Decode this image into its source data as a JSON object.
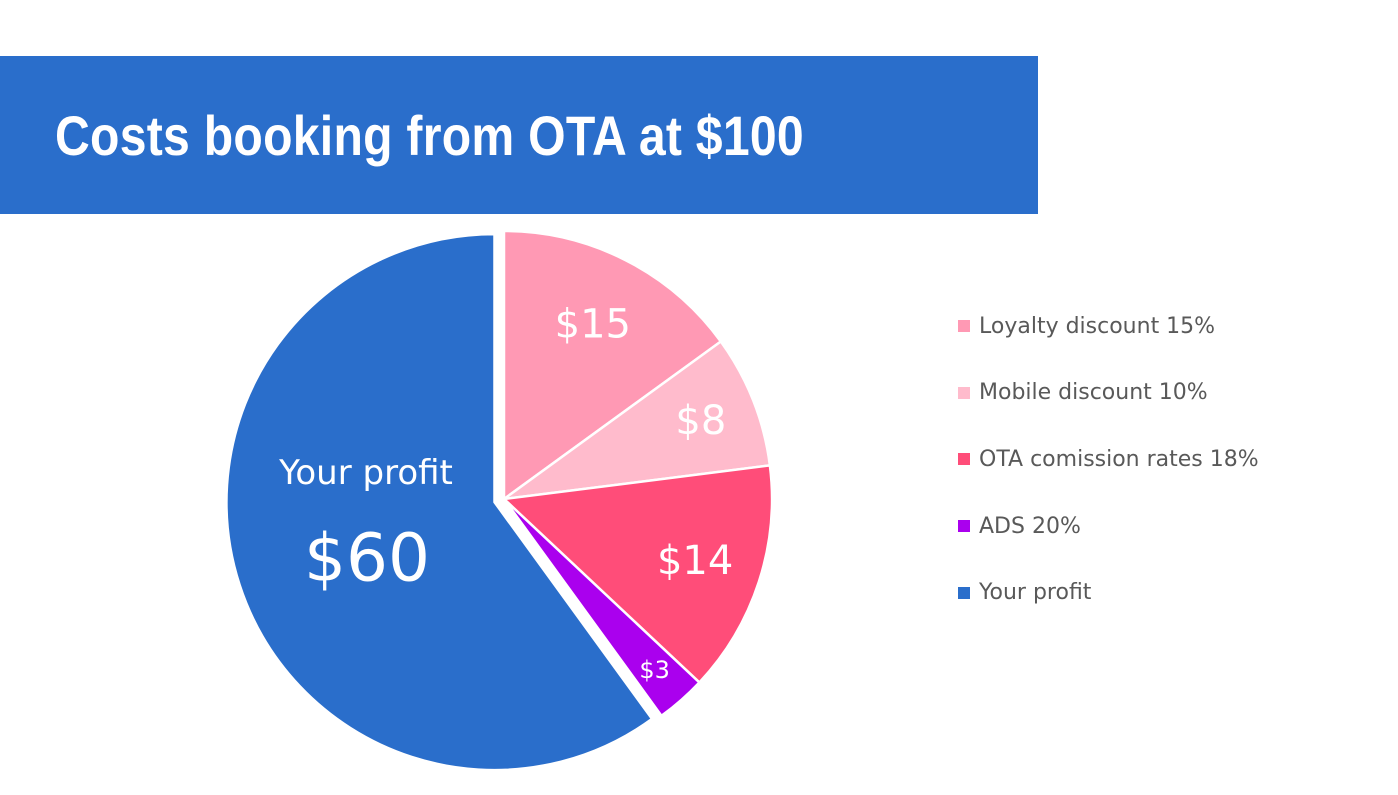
{
  "chart_data": {
    "type": "pie",
    "title": "Costs booking from OTA at $100",
    "slices": [
      {
        "label": "Loyalty discount 15%",
        "value": 15,
        "value_label": "$15",
        "color": "#FF99B4"
      },
      {
        "label": "Mobile discount 10%",
        "value": 8,
        "value_label": "$8",
        "color": "#FFBBCC"
      },
      {
        "label": "OTA comission rates 18%",
        "value": 14,
        "value_label": "$14",
        "color": "#FF4D79"
      },
      {
        "label": "ADS 20%",
        "value": 3,
        "value_label": "$3",
        "color": "#AA00EE"
      },
      {
        "label": "Your profit",
        "value": 60,
        "value_label": "$60",
        "color": "#2A6ECB"
      }
    ],
    "profit_caption": "Your profit",
    "legend_position": "right"
  },
  "colors": {
    "banner": "#2A6ECB",
    "title_text": "#FFFFFF",
    "legend_text": "#595959"
  }
}
